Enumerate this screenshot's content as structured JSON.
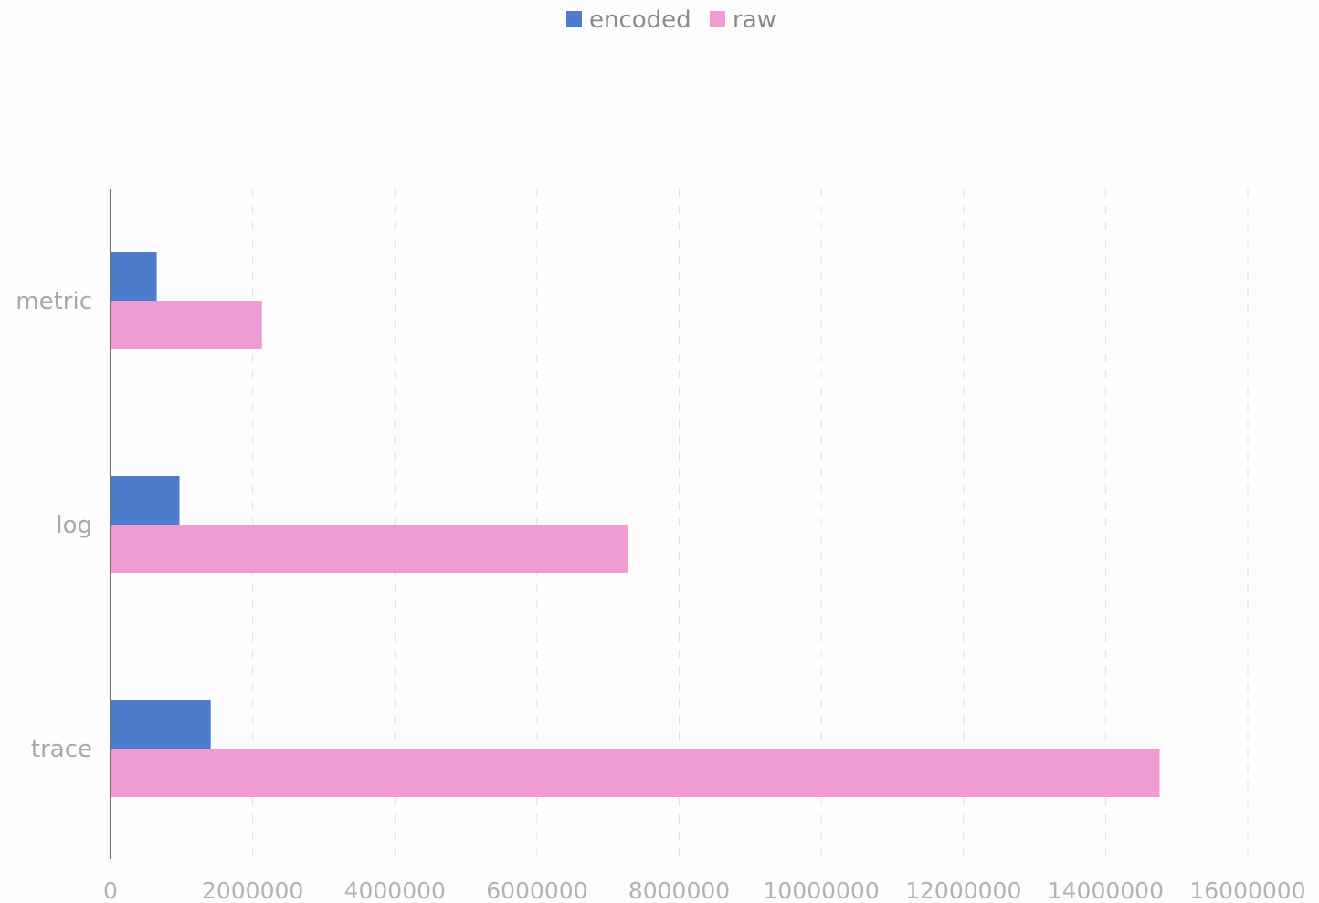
{
  "chart_data": {
    "type": "bar",
    "orientation": "horizontal",
    "categories": [
      "metric",
      "log",
      "trace"
    ],
    "series": [
      {
        "name": "encoded",
        "color": "#4d7ccc",
        "values": [
          650000,
          970000,
          1410000
        ]
      },
      {
        "name": "raw",
        "color": "#f09bd4",
        "values": [
          2130000,
          7280000,
          14760000
        ]
      }
    ],
    "xlim": [
      0,
      16000000
    ],
    "x_ticks": [
      0,
      2000000,
      4000000,
      6000000,
      8000000,
      10000000,
      12000000,
      14000000,
      16000000
    ],
    "x_tick_labels": [
      "0",
      "2000000",
      "4000000",
      "6000000",
      "8000000",
      "10000000",
      "12000000",
      "14000000",
      "16000000"
    ],
    "grid": "vertical-dashed",
    "legend_position": "top-center",
    "title": "",
    "xlabel": "",
    "ylabel": ""
  }
}
